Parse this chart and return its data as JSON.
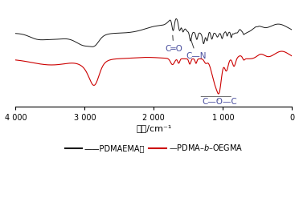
{
  "black_color": "#1a1a1a",
  "red_color": "#cc0000",
  "ann_color": "#4a4f9e",
  "bg_color": "#ffffff",
  "xlabel": "波数/cm⁻¹",
  "xticks": [
    4000,
    3000,
    2000,
    1000,
    0
  ],
  "xticklabels": [
    "4 000",
    "3 000",
    "2 000",
    "1 000",
    "0"
  ]
}
